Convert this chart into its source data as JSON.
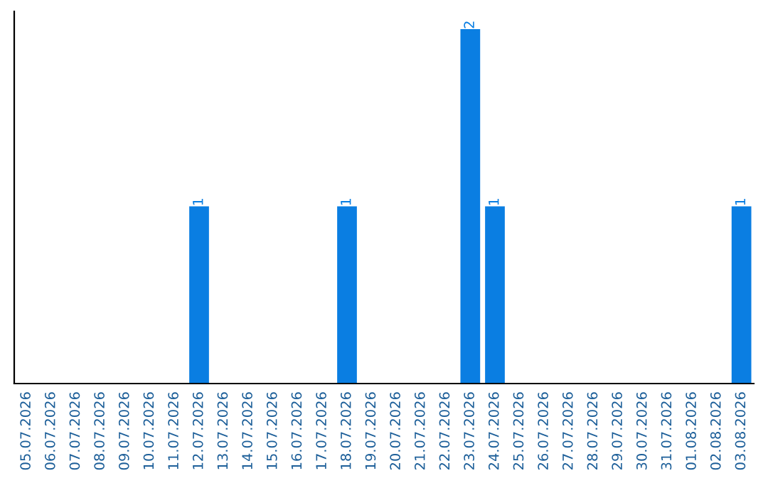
{
  "chart_data": {
    "type": "bar",
    "categories": [
      "05.07.2026",
      "06.07.2026",
      "07.07.2026",
      "08.07.2026",
      "09.07.2026",
      "10.07.2026",
      "11.07.2026",
      "12.07.2026",
      "13.07.2026",
      "14.07.2026",
      "15.07.2026",
      "16.07.2026",
      "17.07.2026",
      "18.07.2026",
      "19.07.2026",
      "20.07.2026",
      "21.07.2026",
      "22.07.2026",
      "23.07.2026",
      "24.07.2026",
      "25.07.2026",
      "26.07.2026",
      "27.07.2026",
      "28.07.2026",
      "29.07.2026",
      "30.07.2026",
      "31.07.2026",
      "01.08.2026",
      "02.08.2026",
      "03.08.2026"
    ],
    "values": [
      0,
      0,
      0,
      0,
      0,
      0,
      0,
      1,
      0,
      0,
      0,
      0,
      0,
      1,
      0,
      0,
      0,
      0,
      2,
      1,
      0,
      0,
      0,
      0,
      0,
      0,
      0,
      0,
      0,
      1
    ],
    "value_labels": [
      null,
      null,
      null,
      null,
      null,
      null,
      null,
      "1",
      null,
      null,
      null,
      null,
      null,
      "1",
      null,
      null,
      null,
      null,
      "2",
      "1",
      null,
      null,
      null,
      null,
      null,
      null,
      null,
      null,
      null,
      "1"
    ],
    "color": "#0a7ee2",
    "grid": false,
    "legend": false
  }
}
